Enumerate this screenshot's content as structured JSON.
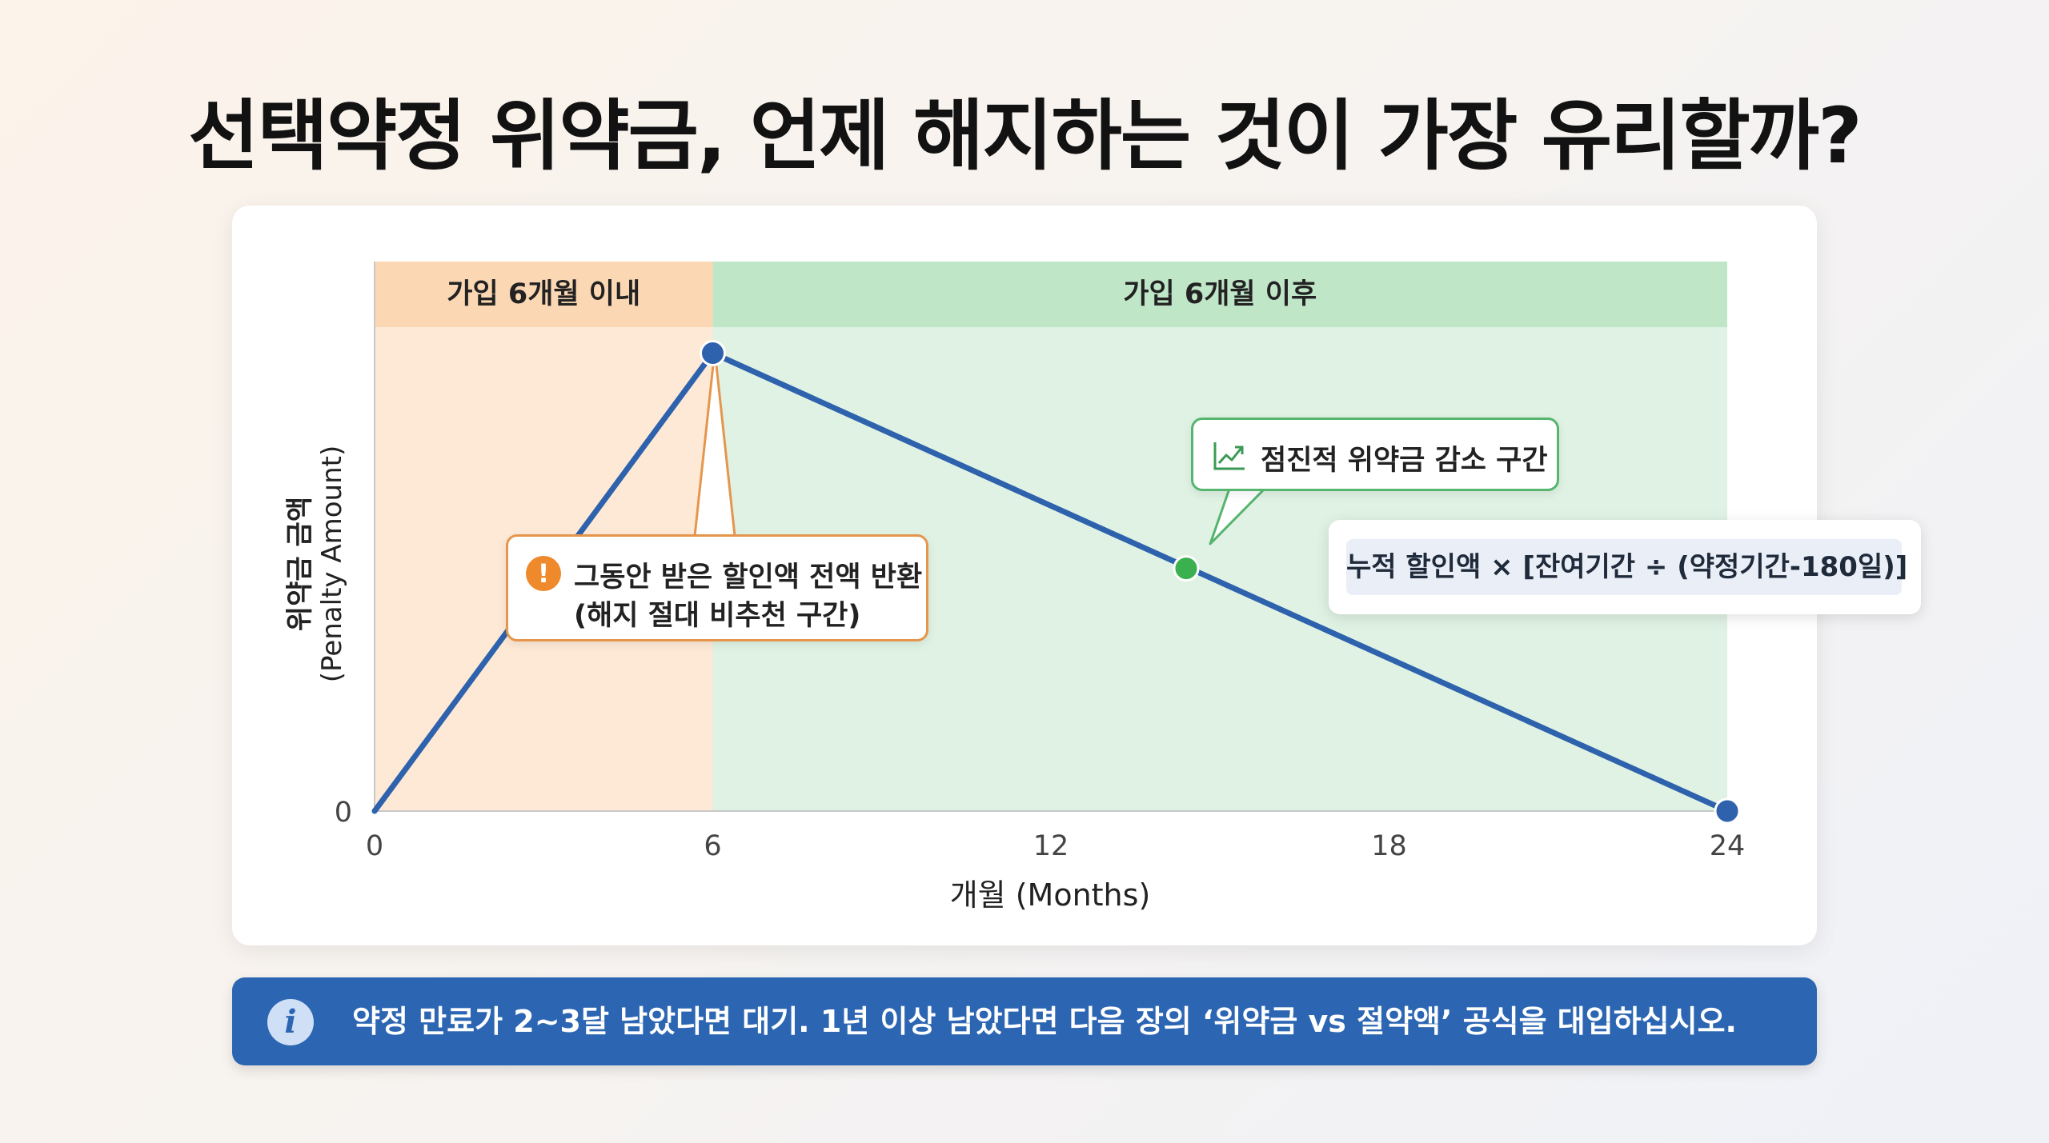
{
  "title": "선택약정 위약금, 언제 해지하는 것이 가장 유리할까?",
  "chart_data": {
    "type": "line",
    "xlabel": "개월 (Months)",
    "ylabel": "위약금 금액",
    "ylabel_en": "(Penalty Amount)",
    "x_ticks": [
      "0",
      "6",
      "12",
      "18",
      "24"
    ],
    "y_ticks": [
      "0"
    ],
    "xlim": [
      0,
      24
    ],
    "ylim": [
      0,
      1.2
    ],
    "series": [
      {
        "values": [
          {
            "x": 0,
            "y": 0
          },
          {
            "x": 6,
            "y": 1
          },
          {
            "x": 24,
            "y": 0
          }
        ]
      }
    ],
    "highlight_point": {
      "x": 14.4,
      "y": 0.53
    },
    "zones": [
      {
        "label": "가입 6개월 이내",
        "x_start": 0,
        "x_end": 6
      },
      {
        "label": "가입 6개월 이후",
        "x_start": 6,
        "x_end": 24
      }
    ],
    "annotations": {
      "warning_line1": "그동안 받은 할인액 전액 반환",
      "warning_line2": "(해지 절대 비추천 구간)",
      "decrease_label": "점진적 위약금 감소 구간",
      "formula": "누적 할인액 × [잔여기간 ÷ (약정기간-180일)]"
    },
    "grid": false
  },
  "colors": {
    "line": "#2e62ad",
    "zone_early_band": "#fbd7b3",
    "zone_early_fill": "#fde9d6",
    "zone_late_band": "#c0e6c8",
    "zone_late_fill": "#dff2e3",
    "highlight_point": "#3bb04f",
    "warning_icon": "#ef8a2c",
    "banner": "#2c66b3"
  },
  "icons": {
    "warning": "exclamation-circle-icon",
    "trend": "trending-up-icon",
    "info": "info-circle-icon"
  },
  "labels": {
    "warning_glyph": "!",
    "info_glyph": "i"
  },
  "banner": {
    "text": "약정 만료가 2~3달 남았다면 대기. 1년 이상 남았다면 다음 장의 ‘위약금 vs 절약액’ 공식을 대입하십시오."
  }
}
